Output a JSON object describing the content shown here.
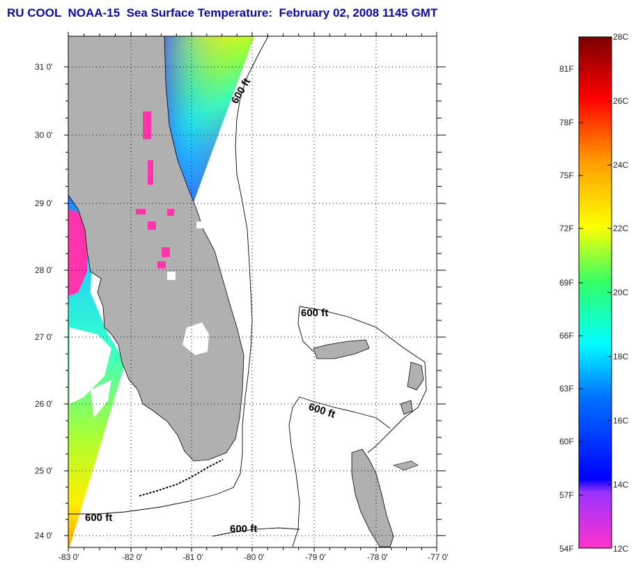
{
  "title": "RU COOL  NOAA-15  Sea Surface Temperature:  February 02, 2008 1145 GMT",
  "map": {
    "lon_labels": [
      "-83 0'",
      "-82 0'",
      "-81 0'",
      "-80 0'",
      "-79 0'",
      "-78 0'",
      "-77 0'"
    ],
    "lat_labels": [
      "31 0'",
      "30 0'",
      "29 0'",
      "28 0'",
      "27 0'",
      "26 0'",
      "25 0'",
      "24 0'"
    ],
    "lon_range": [
      -83,
      -77
    ],
    "lat_range": [
      23.8,
      31.4
    ],
    "land_color": "#b0b0b0",
    "cloud_color": "#ffffff",
    "contour_label": "600 ft",
    "contour_labels": [
      "600 ft",
      "600 ft",
      "600 ft",
      "600 ft",
      "600 ft"
    ]
  },
  "colorbar": {
    "fahrenheit_labels": [
      "81F",
      "78F",
      "75F",
      "72F",
      "69F",
      "66F",
      "63F",
      "60F",
      "57F",
      "54F"
    ],
    "celsius_labels": [
      "28C",
      "26C",
      "24C",
      "22C",
      "20C",
      "18C",
      "16C",
      "14C",
      "12C"
    ],
    "celsius_range": [
      12,
      28
    ],
    "colors": [
      "#ff33cc",
      "#9933ff",
      "#0000ff",
      "#0088ff",
      "#00ffff",
      "#33ff66",
      "#ffff00",
      "#ff9900",
      "#ff0000",
      "#7a0000"
    ]
  }
}
